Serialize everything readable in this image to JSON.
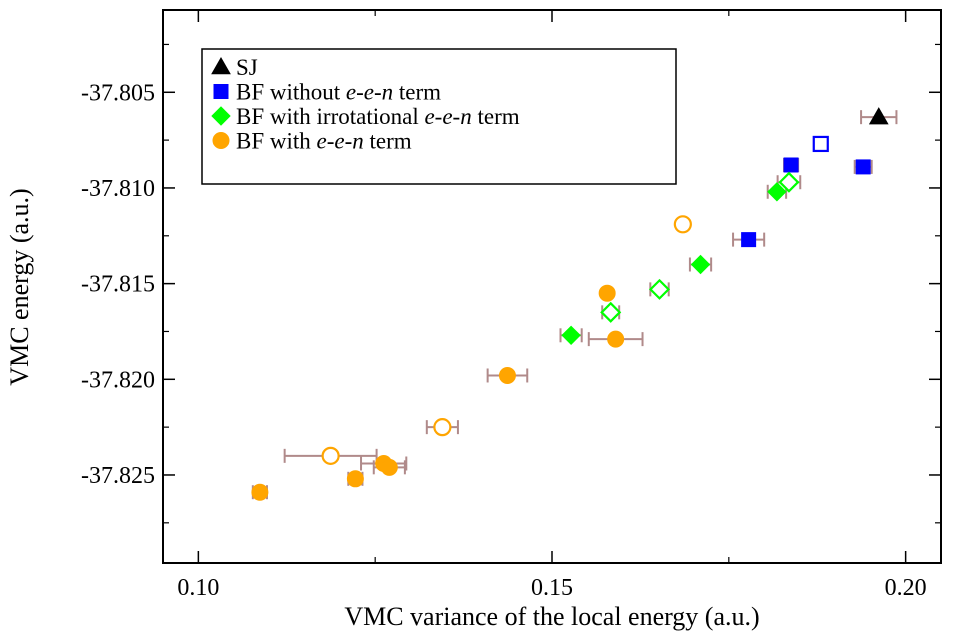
{
  "chart_data": {
    "type": "scatter",
    "title": "",
    "xlabel": "VMC variance of the local energy (a.u.)",
    "ylabel": "VMC energy (a.u.)",
    "xlim": [
      0.095,
      0.205
    ],
    "ylim": [
      -37.8296,
      -37.8007
    ],
    "xticks": [
      0.1,
      0.15,
      0.2
    ],
    "xtick_labels": [
      "0.10",
      "0.15",
      "0.20"
    ],
    "yticks": [
      -37.805,
      -37.81,
      -37.815,
      -37.82,
      -37.825
    ],
    "ytick_labels": [
      "-37.805",
      "-37.810",
      "-37.815",
      "-37.820",
      "-37.825"
    ],
    "grid": false,
    "legend_position": "top-left",
    "legend": [
      {
        "series": 0,
        "parts": [
          {
            "t": "SJ",
            "i": false
          }
        ]
      },
      {
        "series": 1,
        "parts": [
          {
            "t": "BF without ",
            "i": false
          },
          {
            "t": "e-e-n",
            "i": true
          },
          {
            "t": " term",
            "i": false
          }
        ]
      },
      {
        "series": 2,
        "parts": [
          {
            "t": "BF with irrotational ",
            "i": false
          },
          {
            "t": "e-e-n",
            "i": true
          },
          {
            "t": " term",
            "i": false
          }
        ]
      },
      {
        "series": 3,
        "parts": [
          {
            "t": "BF with ",
            "i": false
          },
          {
            "t": "e-e-n",
            "i": true
          },
          {
            "t": " term",
            "i": false
          }
        ]
      }
    ],
    "errorbar_color": "#b08a8a",
    "series": [
      {
        "name": "SJ",
        "marker": "triangle",
        "color": "#000000",
        "points": [
          {
            "x": 0.1962,
            "y": -37.8063,
            "xerr": 0.0025,
            "filled": true
          }
        ]
      },
      {
        "name": "BF without e-e-n term",
        "marker": "square",
        "color": "#0000ff",
        "points": [
          {
            "x": 0.194,
            "y": -37.8089,
            "xerr": 0.0012,
            "filled": true
          },
          {
            "x": 0.1838,
            "y": -37.8088,
            "xerr": 0.001,
            "filled": true
          },
          {
            "x": 0.1778,
            "y": -37.8127,
            "xerr": 0.0022,
            "filled": true
          },
          {
            "x": 0.188,
            "y": -37.8077,
            "xerr": 0.0,
            "filled": false
          }
        ]
      },
      {
        "name": "BF with irrotational e-e-n term",
        "marker": "diamond",
        "color": "#00ff00",
        "points": [
          {
            "x": 0.1818,
            "y": -37.8102,
            "xerr": 0.0013,
            "filled": true
          },
          {
            "x": 0.171,
            "y": -37.814,
            "xerr": 0.0015,
            "filled": true
          },
          {
            "x": 0.1527,
            "y": -37.8177,
            "xerr": 0.0015,
            "filled": true
          },
          {
            "x": 0.1835,
            "y": -37.8097,
            "xerr": 0.0016,
            "filled": false
          },
          {
            "x": 0.1652,
            "y": -37.8153,
            "xerr": 0.0013,
            "filled": false
          },
          {
            "x": 0.1583,
            "y": -37.8165,
            "xerr": 0.0012,
            "filled": false
          }
        ]
      },
      {
        "name": "BF with e-e-n term",
        "marker": "circle",
        "color": "#ffa500",
        "points": [
          {
            "x": 0.1578,
            "y": -37.8155,
            "xerr": 0.0,
            "filled": true
          },
          {
            "x": 0.159,
            "y": -37.8179,
            "xerr": 0.0038,
            "filled": true
          },
          {
            "x": 0.1437,
            "y": -37.8198,
            "xerr": 0.0028,
            "filled": true
          },
          {
            "x": 0.1262,
            "y": -37.8244,
            "xerr": 0.0032,
            "filled": true
          },
          {
            "x": 0.127,
            "y": -37.8246,
            "xerr": 0.0022,
            "filled": true
          },
          {
            "x": 0.1222,
            "y": -37.8252,
            "xerr": 0.001,
            "filled": true
          },
          {
            "x": 0.1087,
            "y": -37.8259,
            "xerr": 0.001,
            "filled": true
          },
          {
            "x": 0.1685,
            "y": -37.8119,
            "xerr": 0.0,
            "filled": false
          },
          {
            "x": 0.1345,
            "y": -37.8225,
            "xerr": 0.0022,
            "filled": false
          },
          {
            "x": 0.1187,
            "y": -37.824,
            "xerr": 0.0065,
            "filled": false
          }
        ]
      }
    ]
  }
}
